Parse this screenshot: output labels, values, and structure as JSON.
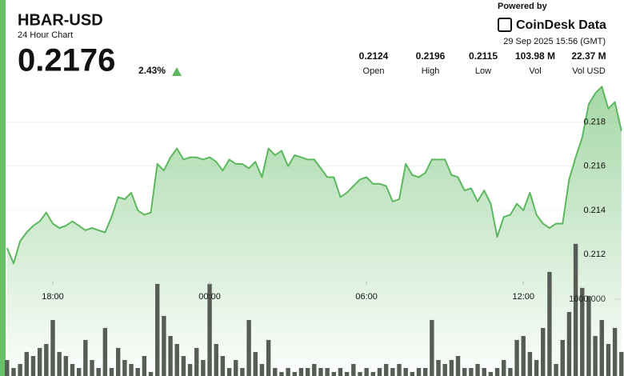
{
  "chart_data": {
    "type": "line",
    "title": "HBAR-USD",
    "subtitle": "24 Hour Chart",
    "price": "0.2176",
    "change": "2.43%",
    "powered_by": "Powered by",
    "brand": "CoinDesk Data",
    "timestamp": "29 Sep 2025 15:56 (GMT)",
    "stats": [
      {
        "value": "0.2124",
        "label": "Open"
      },
      {
        "value": "0.2196",
        "label": "High"
      },
      {
        "value": "0.2115",
        "label": "Low"
      },
      {
        "value": "103.98 M",
        "label": "Vol"
      },
      {
        "value": "22.37 M",
        "label": "Vol USD"
      }
    ],
    "categories": [
      null,
      null,
      null,
      null,
      null,
      null,
      null,
      "18:00",
      null,
      null,
      null,
      null,
      null,
      null,
      null,
      null,
      null,
      null,
      null,
      null,
      null,
      null,
      null,
      null,
      null,
      null,
      null,
      null,
      null,
      null,
      null,
      "00:00",
      null,
      null,
      null,
      null,
      null,
      null,
      null,
      null,
      null,
      null,
      null,
      null,
      null,
      null,
      null,
      null,
      null,
      null,
      null,
      null,
      null,
      null,
      null,
      "06:00",
      null,
      null,
      null,
      null,
      null,
      null,
      null,
      null,
      null,
      null,
      null,
      null,
      null,
      null,
      null,
      null,
      null,
      null,
      null,
      null,
      null,
      null,
      null,
      "12:00",
      null,
      null,
      null,
      null,
      null,
      null,
      null,
      null,
      null,
      null,
      null,
      null,
      null,
      null,
      null
    ],
    "series": [
      {
        "type": "line",
        "color": "#5cb85f",
        "values": [
          0.2123,
          0.2116,
          0.2126,
          0.213,
          0.2133,
          0.2135,
          0.2139,
          0.2134,
          0.2132,
          0.2133,
          0.2135,
          0.2133,
          0.2131,
          0.2132,
          0.2131,
          0.213,
          0.2137,
          0.2146,
          0.2145,
          0.2148,
          0.214,
          0.2138,
          0.2139,
          0.2161,
          0.2158,
          0.2164,
          0.2168,
          0.2163,
          0.2164,
          0.2164,
          0.2163,
          0.2164,
          0.2162,
          0.2158,
          0.2163,
          0.2161,
          0.2161,
          0.2159,
          0.2162,
          0.2155,
          0.2168,
          0.2165,
          0.2167,
          0.216,
          0.2165,
          0.2164,
          0.2163,
          0.2163,
          0.2159,
          0.2155,
          0.2155,
          0.2146,
          0.2148,
          0.2151,
          0.2154,
          0.2155,
          0.2152,
          0.2152,
          0.2151,
          0.2144,
          0.2145,
          0.2161,
          0.2156,
          0.2155,
          0.2157,
          0.2163,
          0.2163,
          0.2163,
          0.2156,
          0.2155,
          0.2149,
          0.215,
          0.2144,
          0.2149,
          0.2143,
          0.2128,
          0.2137,
          0.2138,
          0.2143,
          0.214,
          0.2148,
          0.2138,
          0.2134,
          0.2132,
          0.2134,
          0.2134,
          0.2154,
          0.2164,
          0.2173,
          0.2188,
          0.2193,
          0.2196,
          0.2186,
          0.2189,
          0.2176
        ]
      },
      {
        "type": "bar",
        "axis": "y2",
        "color": "#575c57",
        "values": [
          208,
          104,
          156,
          313,
          260,
          365,
          417,
          729,
          313,
          260,
          156,
          104,
          469,
          208,
          104,
          625,
          104,
          365,
          208,
          156,
          104,
          260,
          52,
          1198,
          781,
          521,
          417,
          260,
          156,
          365,
          208,
          1198,
          417,
          260,
          104,
          208,
          104,
          729,
          313,
          156,
          469,
          104,
          52,
          104,
          52,
          104,
          104,
          156,
          104,
          104,
          52,
          104,
          52,
          156,
          52,
          104,
          52,
          104,
          156,
          104,
          156,
          104,
          52,
          104,
          104,
          729,
          208,
          156,
          208,
          260,
          104,
          104,
          156,
          104,
          52,
          104,
          208,
          104,
          469,
          521,
          313,
          208,
          625,
          1354,
          156,
          469,
          833,
          1719,
          1146,
          1042,
          521,
          729,
          417,
          625,
          313
        ]
      }
    ],
    "ylim": [
      0.2065,
      0.2199
    ],
    "yticks": [
      0.212,
      0.214,
      0.216,
      0.218
    ],
    "y2lim": [
      0,
      3850
    ],
    "y2ticks": [
      {
        "value": 1000,
        "label": "1000.000"
      }
    ],
    "grid": true
  }
}
